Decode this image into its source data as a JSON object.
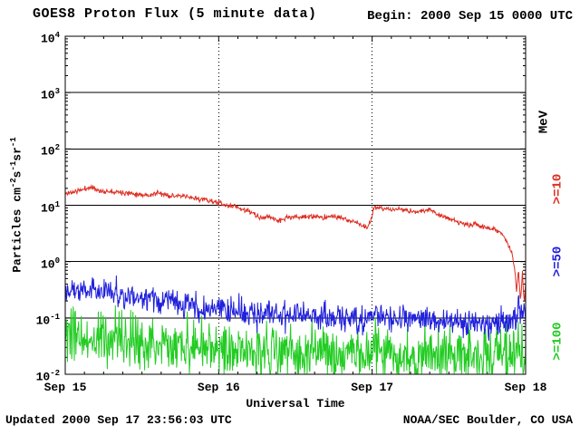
{
  "header": {
    "title": "GOES8 Proton Flux (5 minute data)",
    "begin": "Begin: 2000 Sep 15 0000 UTC"
  },
  "footer": {
    "updated": "Updated 2000 Sep 17 23:56:03 UTC",
    "credit": "NOAA/SEC Boulder, CO USA"
  },
  "colors": {
    "foreground": "#000000",
    "background": "#ffffff",
    "ge10": "#dd2e22",
    "ge50": "#2020dd",
    "ge100": "#22cc22"
  },
  "chart_data": {
    "type": "line",
    "title": "GOES8 Proton Flux (5 minute data)",
    "begin_label": "Begin: 2000 Sep 15 0000 UTC",
    "xlabel": "Universal Time",
    "ylabel": "Particles cm-2s-1sr-1",
    "ylabel_parts": [
      {
        "text": "Particles cm"
      },
      {
        "text": "-2",
        "sup": true
      },
      {
        "text": "s"
      },
      {
        "text": "-1",
        "sup": true
      },
      {
        "text": "sr"
      },
      {
        "text": "-1",
        "sup": true
      }
    ],
    "y_scale": "log",
    "ylim": [
      0.01,
      10000
    ],
    "y_tick_base": "10",
    "y_ticks_exponents": [
      4,
      3,
      2,
      1,
      0,
      -1,
      -2
    ],
    "x_range_hours": [
      0,
      72
    ],
    "x_tick_labels": [
      "Sep 15",
      "Sep 16",
      "Sep 17",
      "Sep 18"
    ],
    "x_gridlines_hours": [
      24,
      48
    ],
    "grid": {
      "horizontal": "solid",
      "vertical": "dotted"
    },
    "right_axis_unit": "MeV",
    "series": [
      {
        "id": "ge10",
        "name": ">=10",
        "unit": "MeV",
        "color": "#dd2e22",
        "noise_log10_sigma": 0.022,
        "seed": 11,
        "points_hour_flux": [
          [
            0,
            16
          ],
          [
            1,
            17
          ],
          [
            2,
            18
          ],
          [
            4,
            21
          ],
          [
            5,
            19
          ],
          [
            6,
            17
          ],
          [
            7,
            18
          ],
          [
            9,
            17
          ],
          [
            11,
            16
          ],
          [
            13,
            15
          ],
          [
            14.5,
            16.5
          ],
          [
            16,
            15
          ],
          [
            18,
            14.5
          ],
          [
            20,
            13.5
          ],
          [
            22,
            12.5
          ],
          [
            24,
            11
          ],
          [
            25.5,
            9.5
          ],
          [
            26.5,
            10
          ],
          [
            27.5,
            8.5
          ],
          [
            28.5,
            8
          ],
          [
            29.5,
            7
          ],
          [
            30.5,
            5.8
          ],
          [
            31.5,
            6.3
          ],
          [
            32.5,
            6
          ],
          [
            33.5,
            5.2
          ],
          [
            34.5,
            6
          ],
          [
            36,
            6.2
          ],
          [
            38,
            6.3
          ],
          [
            40,
            6.1
          ],
          [
            42,
            6.4
          ],
          [
            43.5,
            5.7
          ],
          [
            45,
            5.2
          ],
          [
            46.2,
            4.6
          ],
          [
            47.2,
            4.0
          ],
          [
            47.8,
            5.5
          ],
          [
            48.3,
            9.2
          ],
          [
            49,
            8.6
          ],
          [
            50,
            8.9
          ],
          [
            51,
            8.2
          ],
          [
            52,
            8.6
          ],
          [
            53,
            8.2
          ],
          [
            54,
            7.8
          ],
          [
            55,
            7.6
          ],
          [
            56,
            8.0
          ],
          [
            57,
            8.6
          ],
          [
            58,
            7.3
          ],
          [
            59,
            6.4
          ],
          [
            60,
            5.9
          ],
          [
            61,
            5.3
          ],
          [
            62,
            4.8
          ],
          [
            63,
            4.4
          ],
          [
            64,
            4.6
          ],
          [
            65,
            4.2
          ],
          [
            66,
            4.0
          ],
          [
            67,
            3.8
          ],
          [
            68,
            3.3
          ],
          [
            69,
            2.4
          ],
          [
            69.8,
            1.5
          ],
          [
            70.3,
            0.75
          ],
          [
            70.6,
            0.28
          ],
          [
            70.9,
            0.7
          ],
          [
            71.2,
            0.2
          ],
          [
            71.5,
            0.6
          ],
          [
            71.8,
            0.17
          ],
          [
            72,
            0.45
          ]
        ]
      },
      {
        "id": "ge50",
        "name": ">=50",
        "unit": "MeV",
        "color": "#2020dd",
        "noise_log10_sigma": 0.115,
        "seed": 22,
        "points_hour_flux": [
          [
            0,
            0.3
          ],
          [
            0.8,
            0.42
          ],
          [
            1.5,
            0.33
          ],
          [
            2.5,
            0.28
          ],
          [
            3.5,
            0.36
          ],
          [
            4.5,
            0.3
          ],
          [
            6,
            0.3
          ],
          [
            8,
            0.26
          ],
          [
            10,
            0.23
          ],
          [
            12,
            0.21
          ],
          [
            14,
            0.22
          ],
          [
            16,
            0.19
          ],
          [
            18,
            0.17
          ],
          [
            20,
            0.16
          ],
          [
            22,
            0.15
          ],
          [
            24,
            0.145
          ],
          [
            26,
            0.135
          ],
          [
            28,
            0.125
          ],
          [
            30,
            0.115
          ],
          [
            32,
            0.12
          ],
          [
            34,
            0.11
          ],
          [
            36,
            0.11
          ],
          [
            38,
            0.105
          ],
          [
            40,
            0.11
          ],
          [
            42,
            0.1
          ],
          [
            44,
            0.1
          ],
          [
            46,
            0.095
          ],
          [
            48,
            0.1
          ],
          [
            50,
            0.11
          ],
          [
            52,
            0.105
          ],
          [
            54,
            0.1
          ],
          [
            56,
            0.095
          ],
          [
            58,
            0.09
          ],
          [
            60,
            0.088
          ],
          [
            62,
            0.082
          ],
          [
            64,
            0.086
          ],
          [
            66,
            0.08
          ],
          [
            68,
            0.085
          ],
          [
            69.5,
            0.09
          ],
          [
            70.5,
            0.11
          ],
          [
            71,
            0.16
          ],
          [
            71.4,
            0.12
          ],
          [
            71.8,
            0.15
          ],
          [
            72,
            0.11
          ]
        ]
      },
      {
        "id": "ge100",
        "name": ">=100",
        "unit": "MeV",
        "color": "#22cc22",
        "noise_log10_sigma": 0.24,
        "seed": 33,
        "points_hour_flux": [
          [
            0,
            0.04
          ],
          [
            2,
            0.046
          ],
          [
            4,
            0.038
          ],
          [
            6,
            0.042
          ],
          [
            8,
            0.037
          ],
          [
            10,
            0.034
          ],
          [
            12,
            0.038
          ],
          [
            14,
            0.033
          ],
          [
            16,
            0.031
          ],
          [
            18,
            0.034
          ],
          [
            20,
            0.03
          ],
          [
            22,
            0.03
          ],
          [
            24,
            0.028
          ],
          [
            26,
            0.03
          ],
          [
            28,
            0.027
          ],
          [
            30,
            0.026
          ],
          [
            32,
            0.028
          ],
          [
            34,
            0.026
          ],
          [
            36,
            0.025
          ],
          [
            38,
            0.024
          ],
          [
            40,
            0.025
          ],
          [
            42,
            0.023
          ],
          [
            44,
            0.023
          ],
          [
            46,
            0.021
          ],
          [
            48,
            0.025
          ],
          [
            50,
            0.025
          ],
          [
            52,
            0.023
          ],
          [
            54,
            0.022
          ],
          [
            56,
            0.021
          ],
          [
            58,
            0.021
          ],
          [
            60,
            0.021
          ],
          [
            62,
            0.02
          ],
          [
            64,
            0.02
          ],
          [
            66,
            0.021
          ],
          [
            68,
            0.022
          ],
          [
            70,
            0.026
          ],
          [
            71,
            0.03
          ],
          [
            72,
            0.026
          ]
        ]
      }
    ]
  }
}
